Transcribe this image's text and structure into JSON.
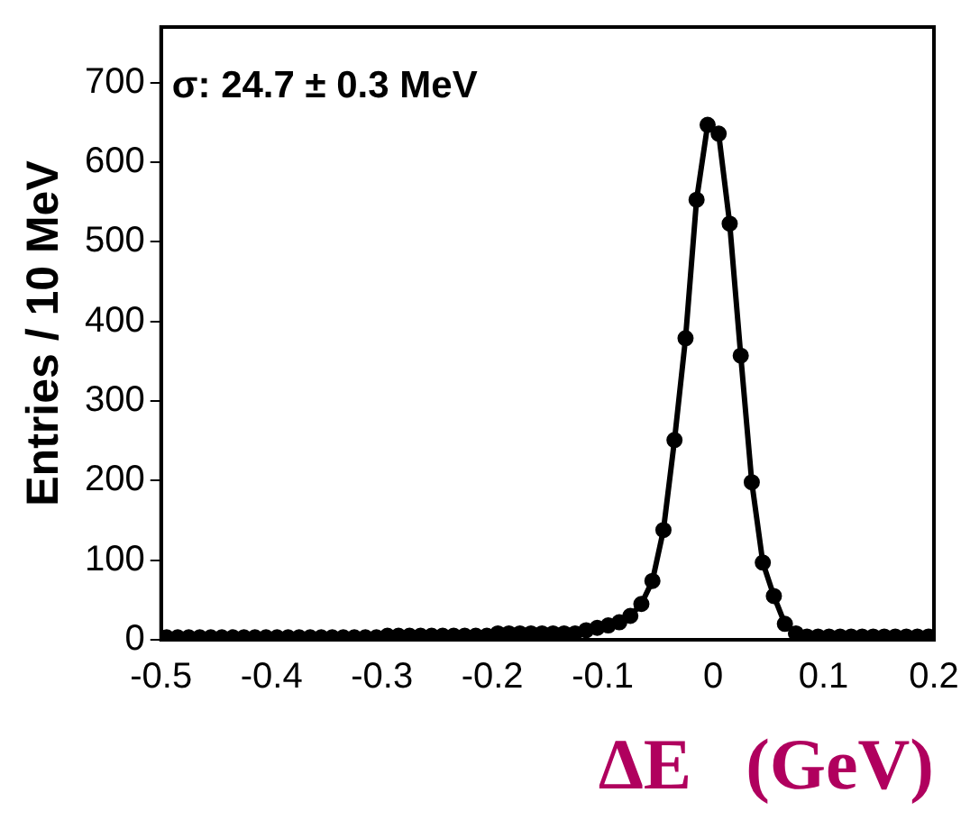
{
  "chart_data": {
    "type": "line",
    "xlabel": "ΔE   (GeV)",
    "ylabel": "Entries / 10 MeV",
    "annotations": [
      "σ: 24.7 ± 0.3 MeV"
    ],
    "x": [
      -0.495,
      -0.485,
      -0.475,
      -0.465,
      -0.455,
      -0.445,
      -0.435,
      -0.425,
      -0.415,
      -0.405,
      -0.395,
      -0.385,
      -0.375,
      -0.365,
      -0.355,
      -0.345,
      -0.335,
      -0.325,
      -0.315,
      -0.305,
      -0.295,
      -0.285,
      -0.275,
      -0.265,
      -0.255,
      -0.245,
      -0.235,
      -0.225,
      -0.215,
      -0.205,
      -0.195,
      -0.185,
      -0.175,
      -0.165,
      -0.155,
      -0.145,
      -0.135,
      -0.125,
      -0.115,
      -0.105,
      -0.095,
      -0.085,
      -0.075,
      -0.065,
      -0.055,
      -0.045,
      -0.035,
      -0.025,
      -0.015,
      -0.005,
      0.005,
      0.015,
      0.025,
      0.035,
      0.045,
      0.055,
      0.065,
      0.075,
      0.085,
      0.095,
      0.105,
      0.115,
      0.125,
      0.135,
      0.145,
      0.155,
      0.165,
      0.175,
      0.185,
      0.195
    ],
    "series": [
      {
        "color": "#000000",
        "values": [
          3,
          3,
          3,
          3,
          3,
          3,
          3,
          3,
          3,
          3,
          3,
          3,
          3,
          3,
          3,
          3,
          3,
          3,
          3,
          3,
          5,
          5,
          5,
          5,
          5,
          5,
          5,
          5,
          5,
          5,
          8,
          8,
          8,
          8,
          8,
          8,
          8,
          8,
          12,
          15,
          18,
          22,
          30,
          45,
          74,
          138,
          251,
          379,
          553,
          647,
          636,
          523,
          357,
          198,
          97,
          55,
          20,
          8,
          4,
          4,
          4,
          4,
          4,
          4,
          4,
          4,
          4,
          4,
          4,
          4
        ]
      }
    ],
    "xlim": [
      -0.5,
      0.2
    ],
    "xticks": [
      -0.5,
      -0.4,
      -0.3,
      -0.2,
      -0.1,
      0,
      0.1,
      0.2
    ],
    "ylim": [
      0,
      770
    ],
    "yticks": [
      0,
      100,
      200,
      300,
      400,
      500,
      600,
      700
    ],
    "grid": false,
    "legend": false,
    "marker": "circle",
    "line_style": "solid"
  }
}
